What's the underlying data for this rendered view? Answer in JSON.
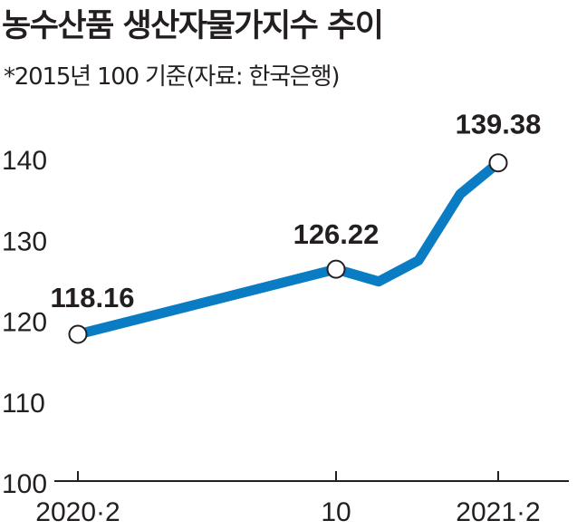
{
  "title": "농수산품 생산자물가지수 추이",
  "subtitle": "*2015년 100 기준(자료: 한국은행)",
  "colors": {
    "line": "#0a7cc4",
    "text": "#231f20",
    "axis": "#231f20",
    "marker_fill": "#ffffff"
  },
  "chart_data": {
    "type": "line",
    "title": "농수산품 생산자물가지수 추이",
    "subtitle": "*2015년 100 기준(자료: 한국은행)",
    "x_tick_labels": [
      "2020·2",
      "10",
      "2021·2"
    ],
    "y_ticks": [
      100,
      110,
      120,
      130,
      140
    ],
    "ylim": [
      100,
      140
    ],
    "grid": false,
    "series": [
      {
        "x": [
          "2020·2",
          "2020·10",
          "2020·11",
          "2020·12",
          "2021·1",
          "2021·2"
        ],
        "values": [
          118.16,
          126.22,
          124.7,
          127.3,
          135.5,
          139.38
        ]
      }
    ],
    "data_labels": [
      {
        "x": "2020·2",
        "value": 118.16,
        "text": "118.16"
      },
      {
        "x": "2020·10",
        "value": 126.22,
        "text": "126.22"
      },
      {
        "x": "2021·2",
        "value": 139.38,
        "text": "139.38"
      }
    ]
  }
}
